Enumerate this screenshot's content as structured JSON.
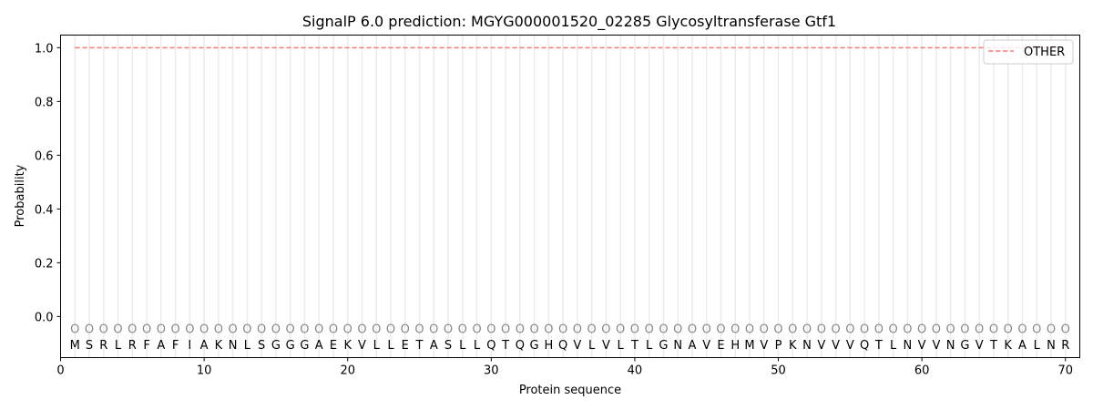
{
  "chart_data": {
    "type": "line",
    "title": "SignalP 6.0 prediction: MGYG000001520_02285 Glycosyltransferase Gtf1",
    "xlabel": "Protein sequence",
    "ylabel": "Probability",
    "xlim": [
      0,
      71
    ],
    "ylim": [
      -0.153,
      1.047
    ],
    "xticks": [
      0,
      10,
      20,
      30,
      40,
      50,
      60,
      70
    ],
    "yticks": [
      0.0,
      0.2,
      0.4,
      0.6,
      0.8,
      1.0
    ],
    "ytick_labels": [
      "0.0",
      "0.2",
      "0.4",
      "0.6",
      "0.8",
      "1.0"
    ],
    "grid": "vertical lines at each residue",
    "legend_position": "top-right",
    "sequence": [
      "M",
      "S",
      "R",
      "L",
      "R",
      "F",
      "A",
      "F",
      "I",
      "A",
      "K",
      "N",
      "L",
      "S",
      "G",
      "G",
      "G",
      "A",
      "E",
      "K",
      "V",
      "L",
      "L",
      "E",
      "T",
      "A",
      "S",
      "L",
      "L",
      "Q",
      "T",
      "Q",
      "G",
      "H",
      "Q",
      "V",
      "L",
      "V",
      "L",
      "T",
      "L",
      "G",
      "N",
      "A",
      "V",
      "E",
      "H",
      "M",
      "V",
      "P",
      "K",
      "N",
      "V",
      "V",
      "V",
      "Q",
      "T",
      "L",
      "N",
      "V",
      "V",
      "N",
      "G",
      "V",
      "T",
      "K",
      "A",
      "L",
      "N",
      "R"
    ],
    "predicted_label": "O",
    "series": [
      {
        "name": "OTHER",
        "color": "#f08080",
        "style": "dashed",
        "x_range": [
          1,
          70
        ],
        "value": 1.0
      }
    ]
  }
}
